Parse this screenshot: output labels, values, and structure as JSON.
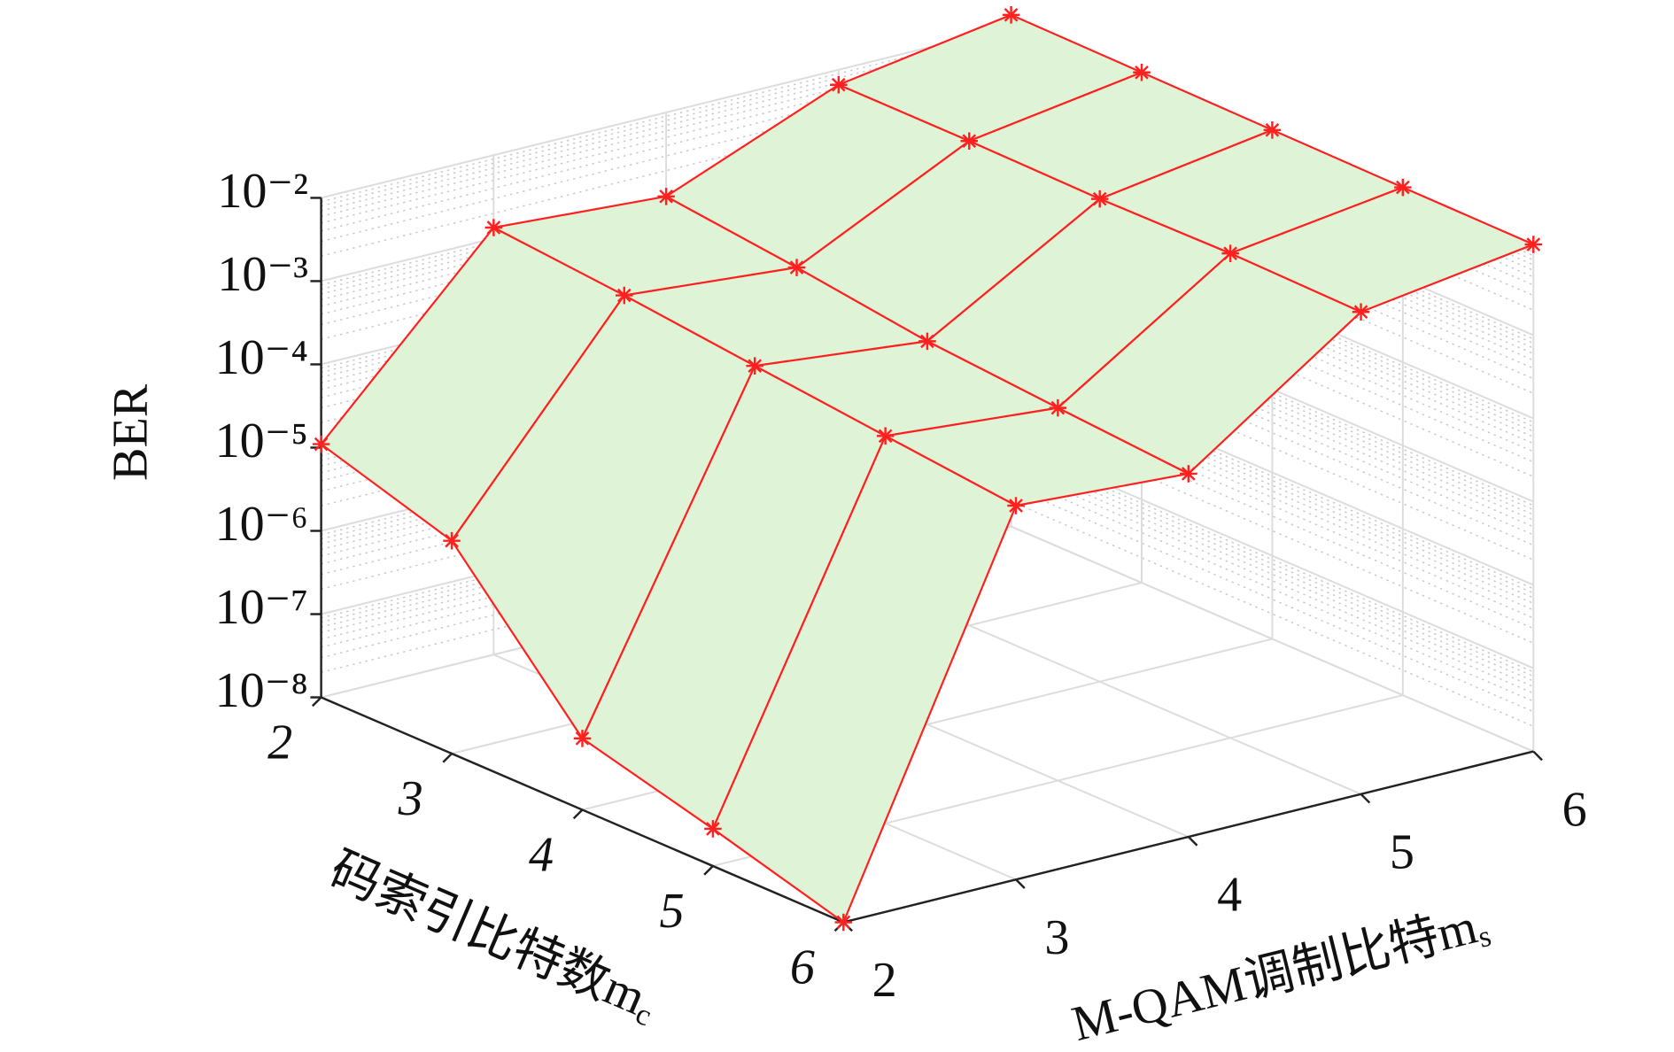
{
  "chart_data": {
    "type": "surface3d",
    "zlabel": "BER",
    "ylabel": {
      "text": "码索引比特数m",
      "subscript": "c"
    },
    "xlabel": {
      "text": "M-QAM调制比特m",
      "subscript": "s"
    },
    "x": [
      2,
      3,
      4,
      5,
      6
    ],
    "y": [
      2,
      3,
      4,
      5,
      6
    ],
    "xlim": [
      2,
      6
    ],
    "ylim": [
      2,
      6
    ],
    "zscale": "log",
    "zlim": [
      1e-08,
      0.01
    ],
    "zticks": [
      {
        "value": 1e-08,
        "label": "10⁻⁸"
      },
      {
        "value": 1e-07,
        "label": "10⁻⁷"
      },
      {
        "value": 1e-06,
        "label": "10⁻⁶"
      },
      {
        "value": 1e-05,
        "label": "10⁻⁵"
      },
      {
        "value": 0.0001,
        "label": "10⁻⁴"
      },
      {
        "value": 0.001,
        "label": "10⁻³"
      },
      {
        "value": 0.01,
        "label": "10⁻²"
      }
    ],
    "grid": true,
    "surface_color": "#dff3d6",
    "edge_color": "#ff2020",
    "values": [
      [
        1.1e-05,
        0.00135,
        0.00098,
        0.0066,
        0.014
      ],
      [
        3.6e-06,
        0.00098,
        0.00065,
        0.0066,
        0.0135
      ],
      [
        7.2e-08,
        0.00066,
        0.0004,
        0.0063,
        0.013
      ],
      [
        2.8e-08,
        0.00045,
        0.0003,
        0.0066,
        0.0126
      ],
      [
        1e-08,
        0.00031,
        0.00023,
        0.0062,
        0.0123
      ]
    ]
  }
}
